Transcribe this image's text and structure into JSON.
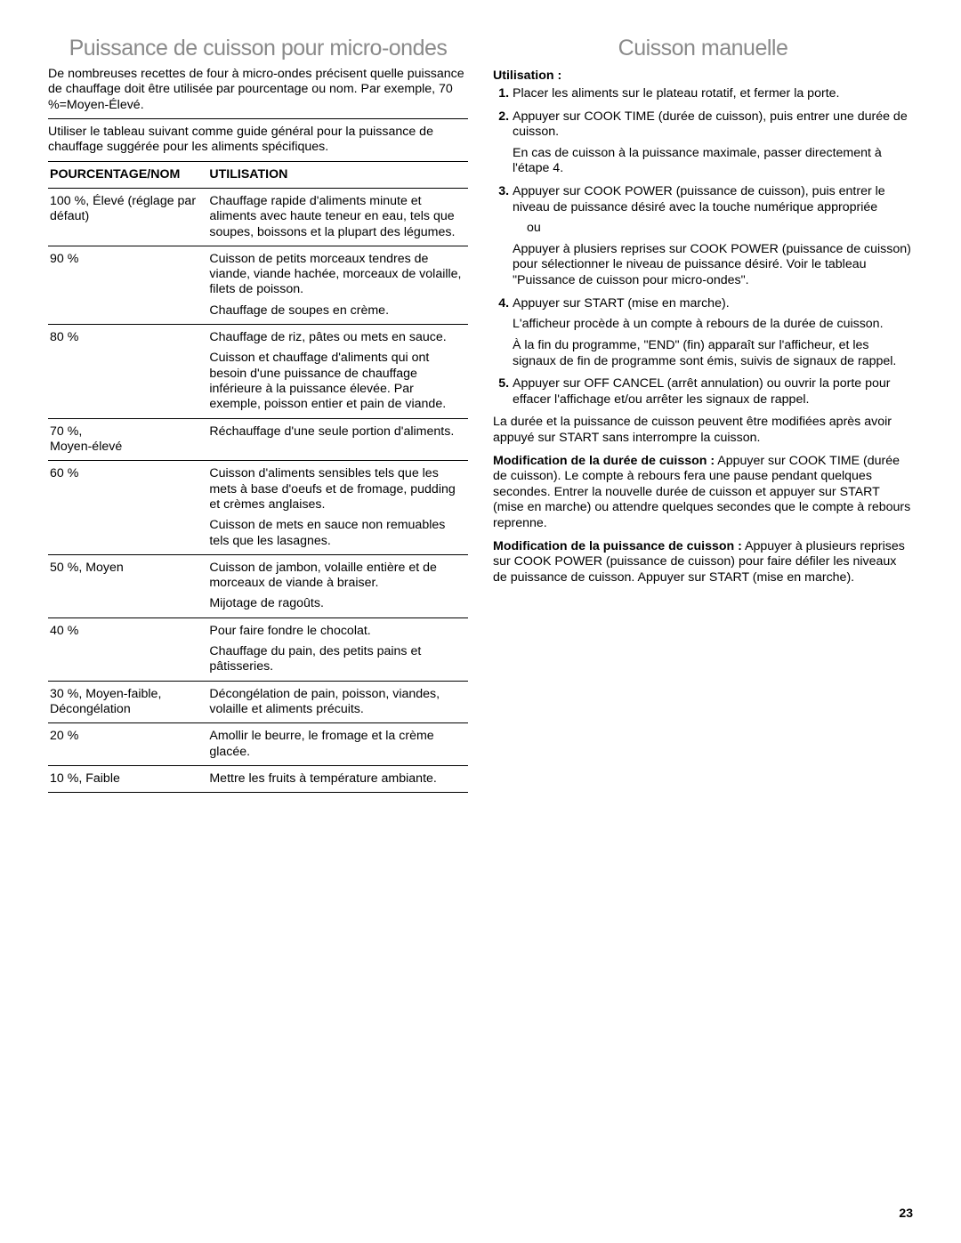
{
  "left": {
    "title": "Puissance de cuisson pour micro-ondes",
    "intro1": "De nombreuses recettes de four à micro-ondes précisent quelle puissance de chauffage doit être utilisée par pourcentage ou nom. Par exemple, 70 %=Moyen-Élevé.",
    "intro2": "Utiliser le tableau suivant comme guide général pour la puissance de chauffage suggérée pour les aliments spécifiques.",
    "table": {
      "headers": {
        "pct": "POURCENTAGE/NOM",
        "use": "UTILISATION"
      },
      "rows": [
        {
          "pct": "100 %, Élevé (réglage par défaut)",
          "use": [
            "Chauffage rapide d'aliments minute et aliments avec haute teneur en eau, tels que soupes, boissons et la plupart des légumes."
          ]
        },
        {
          "pct": "90 %",
          "use": [
            "Cuisson de petits morceaux tendres de viande, viande hachée, morceaux de volaille, filets de poisson.",
            "Chauffage de soupes en crème."
          ]
        },
        {
          "pct": "80 %",
          "use": [
            "Chauffage de riz, pâtes ou mets en sauce.",
            "Cuisson et chauffage d'aliments qui ont besoin d'une puissance de chauffage inférieure à la puissance élevée. Par exemple, poisson entier et pain de viande."
          ]
        },
        {
          "pct": "70 %,\nMoyen-élevé",
          "use": [
            "Réchauffage d'une seule portion d'aliments."
          ]
        },
        {
          "pct": "60 %",
          "use": [
            "Cuisson d'aliments sensibles tels que les mets à base d'oeufs et de fromage, pudding et crèmes anglaises.",
            "Cuisson de mets en sauce non remuables tels que les lasagnes."
          ]
        },
        {
          "pct": "50 %, Moyen",
          "use": [
            "Cuisson de jambon, volaille entière et de morceaux de viande à braiser.",
            "Mijotage de ragoûts."
          ]
        },
        {
          "pct": "40 %",
          "use": [
            "Pour faire fondre le chocolat.",
            "Chauffage du pain, des petits pains et pâtisseries."
          ]
        },
        {
          "pct": "30 %, Moyen-faible, Décongélation",
          "use": [
            "Décongélation de pain, poisson, viandes, volaille et aliments précuits."
          ]
        },
        {
          "pct": "20 %",
          "use": [
            "Amollir le beurre, le fromage et la crème glacée."
          ]
        },
        {
          "pct": "10 %, Faible",
          "use": [
            "Mettre les fruits à température ambiante."
          ]
        }
      ]
    }
  },
  "right": {
    "title": "Cuisson manuelle",
    "subheading": "Utilisation :",
    "steps": [
      {
        "main": "Placer les aliments sur le plateau rotatif, et fermer la porte."
      },
      {
        "main": "Appuyer sur COOK TIME (durée de cuisson), puis entrer une durée de cuisson.",
        "paras": [
          "En cas de cuisson à la puissance maximale, passer directement à l'étape 4."
        ]
      },
      {
        "main": "Appuyer sur COOK POWER (puissance de cuisson), puis entrer le niveau de puissance désiré avec la touche numérique appropriée",
        "indent": "ou",
        "paras": [
          "Appuyer à plusiers reprises sur COOK POWER (puissance de cuisson) pour sélectionner le niveau de puissance désiré. Voir le tableau \"Puissance de cuisson pour micro-ondes\"."
        ]
      },
      {
        "main": "Appuyer sur START (mise en marche).",
        "paras": [
          "L'afficheur procède à un compte à rebours de la durée de cuisson.",
          "À la fin du programme, \"END\" (fin) apparaît sur l'afficheur, et les signaux de fin de programme sont émis, suivis de signaux de rappel."
        ]
      },
      {
        "main": "Appuyer sur OFF CANCEL (arrêt annulation) ou ouvrir la porte pour effacer l'affichage et/ou arrêter les signaux de rappel."
      }
    ],
    "after1": "La durée et la puissance de cuisson peuvent être modifiées après avoir appuyé sur START sans interrompre la cuisson.",
    "after2_bold": "Modification de la durée de cuisson :",
    "after2_rest": " Appuyer sur COOK TIME (durée de cuisson). Le compte à rebours fera une pause pendant quelques secondes. Entrer la nouvelle durée de cuisson et appuyer sur START (mise en marche) ou attendre quelques secondes que le compte à rebours reprenne.",
    "after3_bold": "Modification de la puissance de cuisson :",
    "after3_rest": " Appuyer à plusieurs reprises sur COOK POWER (puissance de cuisson) pour faire défiler les niveaux de puissance de cuisson. Appuyer sur START (mise en marche).",
    "page_number": "23"
  },
  "colors": {
    "title_gray": "#8a8a8a",
    "rule": "#000000",
    "text": "#000000",
    "background": "#ffffff"
  },
  "typography": {
    "title_fontsize_pt": 19,
    "body_fontsize_pt": 11,
    "font_family": "Arial, Helvetica, sans-serif"
  }
}
